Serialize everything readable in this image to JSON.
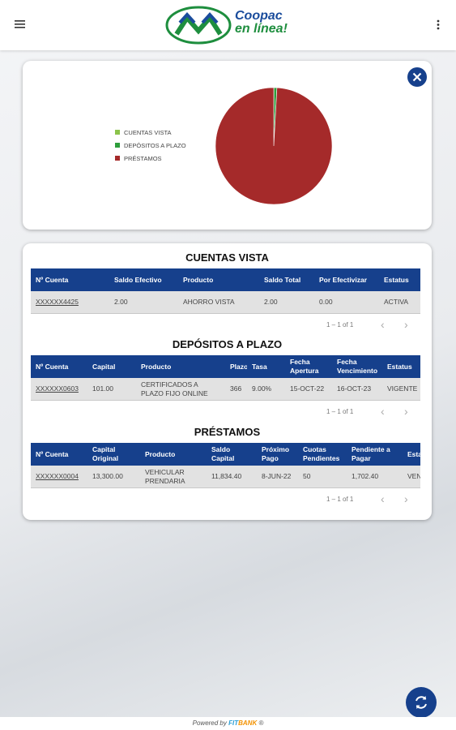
{
  "header": {
    "logo_line1": "Coopac",
    "logo_line2": "en línea!"
  },
  "chart_data": {
    "type": "pie",
    "categories": [
      "CUENTAS VISTA",
      "DEPÓSITOS A PLAZO",
      "PRÉSTAMOS"
    ],
    "values": [
      2,
      101,
      11834.4
    ],
    "colors": [
      "#8bc34a",
      "#2e9e3c",
      "#a52a2a"
    ]
  },
  "sections": [
    {
      "title": "CUENTAS VISTA",
      "columns": [
        "Nº Cuenta",
        "Saldo Efectivo",
        "Producto",
        "Saldo Total",
        "Por Efectivizar",
        "Estatus"
      ],
      "rows": [
        [
          "XXXXXX4425",
          "2.00",
          "AHORRO VISTA",
          "2.00",
          "0.00",
          "ACTIVA"
        ]
      ],
      "pagination": "1 – 1 of 1"
    },
    {
      "title": "DEPÓSITOS A PLAZO",
      "columns": [
        "Nº Cuenta",
        "Capital",
        "Producto",
        "Plazo",
        "Tasa",
        "Fecha Apertura",
        "Fecha Vencimiento",
        "Estatus"
      ],
      "rows": [
        [
          "XXXXXX0603",
          "101.00",
          "CERTIFICADOS A PLAZO FIJO ONLINE",
          "366",
          "9.00%",
          "15-OCT-22",
          "16-OCT-23",
          "VIGENTE"
        ]
      ],
      "pagination": "1 – 1 of 1"
    },
    {
      "title": "PRÉSTAMOS",
      "columns": [
        "Nº Cuenta",
        "Capital Original",
        "Producto",
        "Saldo Capital",
        "Próximo Pago",
        "Cuotas Pendientes",
        "Pendiente a Pagar",
        "Estatus"
      ],
      "rows": [
        [
          "XXXXXX0004",
          "13,300.00",
          "VEHICULAR PRENDARIA",
          "11,834.40",
          "8-JUN-22",
          "50",
          "1,702.40",
          "VENCIDO"
        ]
      ],
      "pagination": "1 – 1 of 1"
    }
  ],
  "footer": {
    "powered": "Powered by",
    "brand1": "FIT",
    "brand2": "BANK",
    "mark": "®"
  }
}
